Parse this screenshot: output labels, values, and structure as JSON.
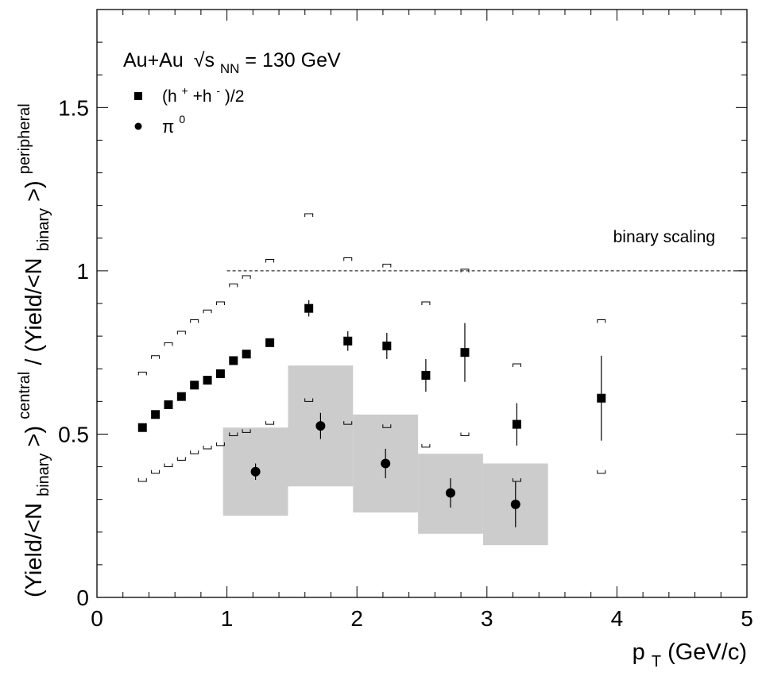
{
  "chart_data": {
    "type": "scatter",
    "title": "",
    "annotation": {
      "system": "Au+Au",
      "energy_label": "√s",
      "energy_sub": "NN",
      "energy_value": "= 130 GeV"
    },
    "reference_line": {
      "y": 1.0,
      "x_start": 1.0,
      "x_end": 5.0,
      "label": "binary scaling"
    },
    "xlabel": {
      "main": "p",
      "sub": "T",
      "rest": " (GeV/c)"
    },
    "ylabel": {
      "part1": "(Yield/<N",
      "sub1": "binary",
      "part2": ">)",
      "sup1": "central",
      "slash": " / ",
      "part3": "(Yield/<N",
      "sub2": "binary",
      "part4": ">)",
      "sup2": "peripheral"
    },
    "xlim": [
      0,
      5
    ],
    "ylim": [
      0,
      1.8
    ],
    "xticks": [
      "0",
      "1",
      "2",
      "3",
      "4",
      "5"
    ],
    "yticks": [
      "0",
      "0.5",
      "1",
      "1.5"
    ],
    "legend": [
      {
        "marker": "square",
        "text_a": "(h",
        "sup_a": "+",
        "text_b": "+h",
        "sup_b": "-",
        "text_c": ")/2"
      },
      {
        "marker": "circle",
        "text_a": "π",
        "sup_a": "0"
      }
    ],
    "series": [
      {
        "name": "(h+ + h-)/2",
        "marker": "square",
        "points": [
          {
            "x": 0.35,
            "y": 0.52,
            "err": 0
          },
          {
            "x": 0.45,
            "y": 0.56,
            "err": 0
          },
          {
            "x": 0.55,
            "y": 0.59,
            "err": 0
          },
          {
            "x": 0.65,
            "y": 0.615,
            "err": 0
          },
          {
            "x": 0.75,
            "y": 0.65,
            "err": 0
          },
          {
            "x": 0.85,
            "y": 0.665,
            "err": 0
          },
          {
            "x": 0.95,
            "y": 0.685,
            "err": 0
          },
          {
            "x": 1.05,
            "y": 0.725,
            "err": 0
          },
          {
            "x": 1.15,
            "y": 0.745,
            "err": 0
          },
          {
            "x": 1.33,
            "y": 0.78,
            "err": 0
          },
          {
            "x": 1.63,
            "y": 0.885,
            "err": 0.025
          },
          {
            "x": 1.93,
            "y": 0.785,
            "err": 0.03
          },
          {
            "x": 2.23,
            "y": 0.77,
            "err": 0.04
          },
          {
            "x": 2.53,
            "y": 0.68,
            "err": 0.05
          },
          {
            "x": 2.83,
            "y": 0.75,
            "err": 0.09
          },
          {
            "x": 3.23,
            "y": 0.53,
            "err": 0.065
          },
          {
            "x": 3.88,
            "y": 0.61,
            "err": 0.13
          }
        ],
        "systematic_upper": [
          {
            "x": 0.35,
            "y": 0.69
          },
          {
            "x": 0.45,
            "y": 0.74
          },
          {
            "x": 0.55,
            "y": 0.78
          },
          {
            "x": 0.65,
            "y": 0.815
          },
          {
            "x": 0.75,
            "y": 0.85
          },
          {
            "x": 0.85,
            "y": 0.88
          },
          {
            "x": 0.95,
            "y": 0.905
          },
          {
            "x": 1.05,
            "y": 0.96
          },
          {
            "x": 1.15,
            "y": 0.985
          },
          {
            "x": 1.33,
            "y": 1.035
          },
          {
            "x": 1.63,
            "y": 1.175
          },
          {
            "x": 1.93,
            "y": 1.04
          },
          {
            "x": 2.23,
            "y": 1.02
          },
          {
            "x": 2.53,
            "y": 0.905
          },
          {
            "x": 2.83,
            "y": 1.005
          },
          {
            "x": 3.23,
            "y": 0.715
          },
          {
            "x": 3.88,
            "y": 0.85
          }
        ],
        "systematic_lower": [
          {
            "x": 0.35,
            "y": 0.355
          },
          {
            "x": 0.45,
            "y": 0.38
          },
          {
            "x": 0.55,
            "y": 0.4
          },
          {
            "x": 0.65,
            "y": 0.42
          },
          {
            "x": 0.75,
            "y": 0.44
          },
          {
            "x": 0.85,
            "y": 0.455
          },
          {
            "x": 0.95,
            "y": 0.465
          },
          {
            "x": 1.05,
            "y": 0.495
          },
          {
            "x": 1.15,
            "y": 0.505
          },
          {
            "x": 1.33,
            "y": 0.53
          },
          {
            "x": 1.63,
            "y": 0.6
          },
          {
            "x": 1.93,
            "y": 0.53
          },
          {
            "x": 2.23,
            "y": 0.52
          },
          {
            "x": 2.53,
            "y": 0.46
          },
          {
            "x": 2.83,
            "y": 0.495
          },
          {
            "x": 3.23,
            "y": 0.355
          },
          {
            "x": 3.88,
            "y": 0.38
          }
        ]
      },
      {
        "name": "π0",
        "marker": "circle",
        "points": [
          {
            "x": 1.22,
            "y": 0.385,
            "err": 0.025
          },
          {
            "x": 1.72,
            "y": 0.525,
            "err": 0.04
          },
          {
            "x": 2.22,
            "y": 0.41,
            "err": 0.045
          },
          {
            "x": 2.72,
            "y": 0.32,
            "err": 0.045
          },
          {
            "x": 3.22,
            "y": 0.285,
            "err": 0.07
          }
        ],
        "systematic_bands": [
          {
            "x0": 0.97,
            "x1": 1.47,
            "y0": 0.25,
            "y1": 0.52
          },
          {
            "x0": 1.47,
            "x1": 1.97,
            "y0": 0.34,
            "y1": 0.71
          },
          {
            "x0": 1.97,
            "x1": 2.47,
            "y0": 0.26,
            "y1": 0.56
          },
          {
            "x0": 2.47,
            "x1": 2.97,
            "y0": 0.195,
            "y1": 0.44
          },
          {
            "x0": 2.97,
            "x1": 3.47,
            "y0": 0.16,
            "y1": 0.41
          }
        ]
      }
    ],
    "colors": {
      "band": "#cccccc",
      "marker": "#000000",
      "line": "#000000"
    }
  }
}
